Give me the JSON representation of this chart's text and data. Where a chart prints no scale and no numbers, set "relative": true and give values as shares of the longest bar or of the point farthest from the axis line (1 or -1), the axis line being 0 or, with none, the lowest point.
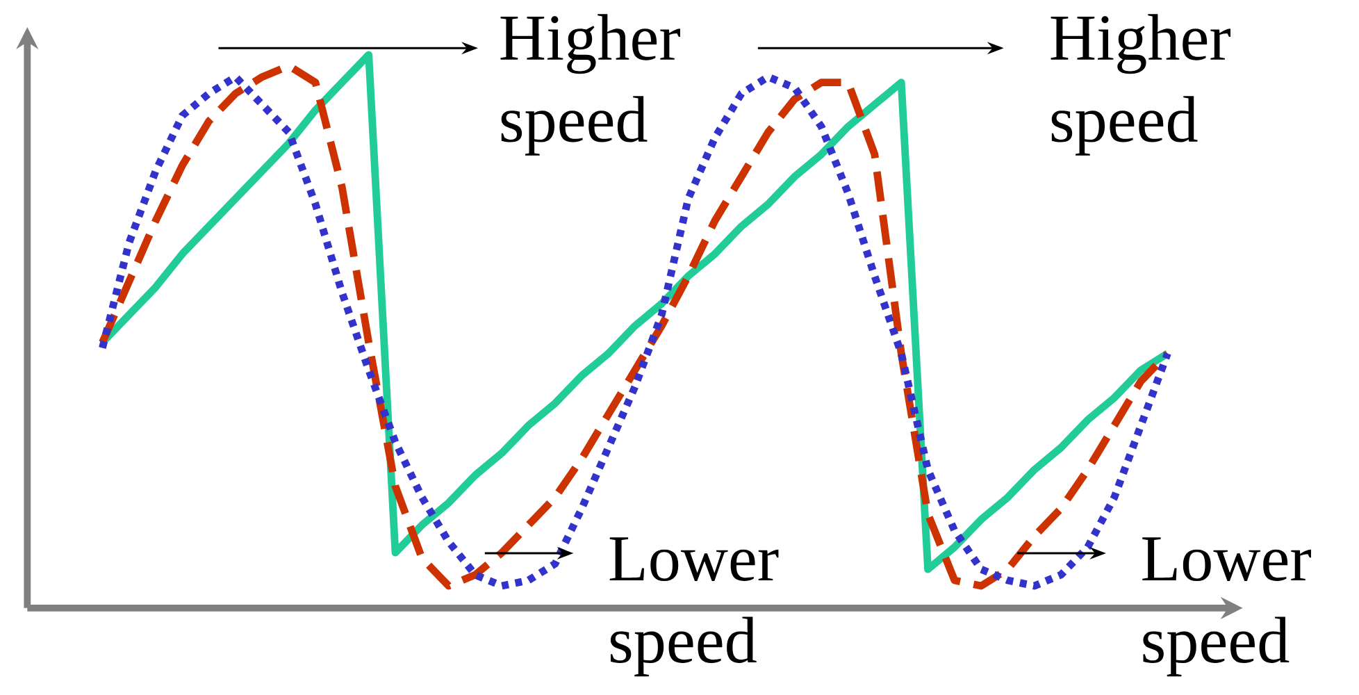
{
  "chart_data": {
    "type": "line",
    "relative": true,
    "annotations": [
      "Higher speed",
      "Higher speed",
      "Lower speed",
      "Lower speed"
    ],
    "categories": [
      null,
      null,
      null,
      null,
      null,
      null,
      null,
      null,
      null,
      null,
      null,
      null,
      null,
      null,
      null,
      null,
      null,
      null,
      null,
      null,
      null,
      null,
      null,
      null,
      null,
      null,
      null,
      null,
      null,
      null,
      null,
      null,
      null,
      null,
      null,
      null,
      null,
      null,
      null,
      null,
      null
    ],
    "series": [
      {
        "color": "#22cc99",
        "line_style": "solid",
        "values": [
          0.48,
          0.53,
          0.58,
          0.64,
          0.69,
          0.74,
          0.79,
          0.84,
          0.9,
          0.95,
          1.0,
          0.1,
          0.15,
          0.19,
          0.24,
          0.28,
          0.33,
          0.37,
          0.42,
          0.46,
          0.51,
          0.55,
          0.6,
          0.64,
          0.69,
          0.73,
          0.78,
          0.82,
          0.87,
          0.91,
          0.95,
          0.07,
          0.11,
          0.16,
          0.2,
          0.25,
          0.29,
          0.34,
          0.38,
          0.43,
          0.46
        ]
      },
      {
        "color": "#cc3300",
        "line_style": "dashed",
        "values": [
          0.48,
          0.59,
          0.7,
          0.8,
          0.88,
          0.93,
          0.96,
          0.98,
          0.95,
          0.76,
          0.48,
          0.22,
          0.09,
          0.04,
          0.06,
          0.1,
          0.15,
          0.2,
          0.27,
          0.35,
          0.43,
          0.51,
          0.6,
          0.7,
          0.78,
          0.86,
          0.92,
          0.95,
          0.95,
          0.82,
          0.46,
          0.17,
          0.05,
          0.04,
          0.07,
          0.13,
          0.18,
          0.25,
          0.33,
          0.41,
          0.46
        ]
      },
      {
        "color": "#3333cc",
        "line_style": "dotted",
        "values": [
          0.47,
          0.66,
          0.79,
          0.89,
          0.93,
          0.96,
          0.91,
          0.86,
          0.73,
          0.57,
          0.43,
          0.3,
          0.2,
          0.12,
          0.06,
          0.04,
          0.05,
          0.08,
          0.18,
          0.29,
          0.4,
          0.53,
          0.74,
          0.85,
          0.93,
          0.96,
          0.94,
          0.87,
          0.75,
          0.6,
          0.46,
          0.25,
          0.14,
          0.07,
          0.05,
          0.04,
          0.06,
          0.11,
          0.2,
          0.33,
          0.46
        ]
      }
    ]
  }
}
